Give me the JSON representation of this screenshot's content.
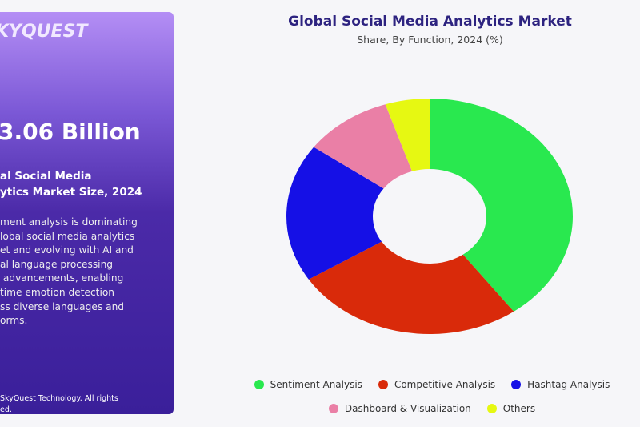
{
  "panel": {
    "logo": "KYQUEST",
    "market_size": "3.06 Billion",
    "size_label_lines": [
      "al Social Media",
      "ytics Market Size, 2024"
    ],
    "description_lines": [
      "ment analysis is dominating",
      "lobal social media analytics",
      "et and evolving with AI and",
      "al language processing",
      " advancements, enabling",
      "time emotion detection",
      "ss diverse languages and",
      "orms."
    ],
    "copyright_lines": [
      "SkyQuest Technology. All rights",
      "ed."
    ]
  },
  "chart_data": {
    "type": "pie",
    "donut": true,
    "title": "Global Social Media Analytics Market",
    "subtitle": "Share, By Function, 2024 (%)",
    "categories": [
      "Sentiment Analysis",
      "Competitive Analysis",
      "Hashtag Analysis",
      "Dashboard & Visualization",
      "Others"
    ],
    "values": [
      40,
      26,
      19,
      10,
      5
    ],
    "colors": [
      "#29e84f",
      "#d92a0a",
      "#1510e6",
      "#ea7fa6",
      "#e6f812"
    ],
    "legend_position": "bottom"
  }
}
